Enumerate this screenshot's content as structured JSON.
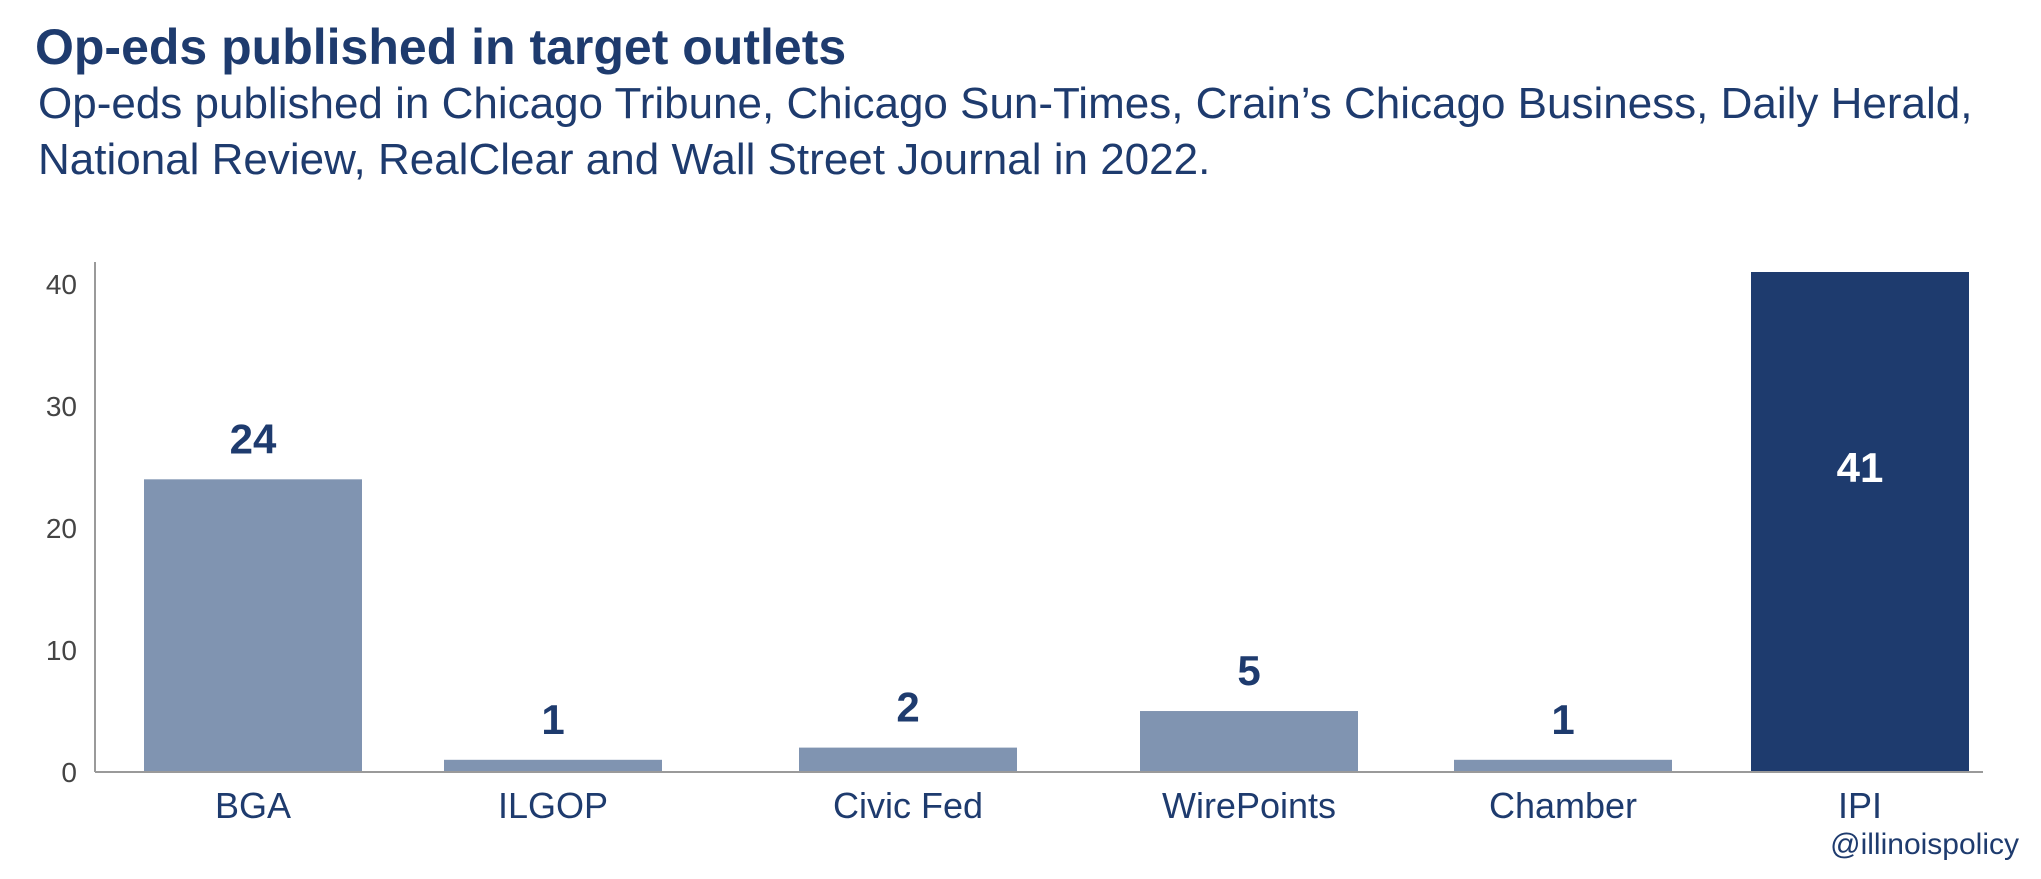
{
  "header": {
    "title": "Op-eds published in target outlets",
    "subtitle": "Op-eds published in Chicago Tribune, Chicago Sun-Times, Crain’s Chicago Business, Daily Herald, National Review, RealClear and Wall Street Journal in 2022."
  },
  "chart_data": {
    "type": "bar",
    "categories": [
      "BGA",
      "ILGOP",
      "Civic Fed",
      "WirePoints",
      "Chamber",
      "IPI"
    ],
    "values": [
      24,
      1,
      2,
      5,
      1,
      41
    ],
    "data_labels": [
      "24",
      "1",
      "2",
      "5",
      "1",
      "41"
    ],
    "highlight_index": 5,
    "ylim": [
      0,
      41
    ],
    "yticks": [
      0,
      10,
      20,
      30,
      40
    ],
    "xlabel": "",
    "ylabel": "",
    "grid": false,
    "legend": "none",
    "colors": {
      "bar": "#8094b1",
      "highlight_bar": "#1e3b6e",
      "label_dark": "#1e3b6e",
      "label_light": "#ffffff",
      "axis": "#9a9a9a",
      "tick_text": "#444444"
    }
  },
  "footer": {
    "credit": "@illinoispolicy"
  }
}
